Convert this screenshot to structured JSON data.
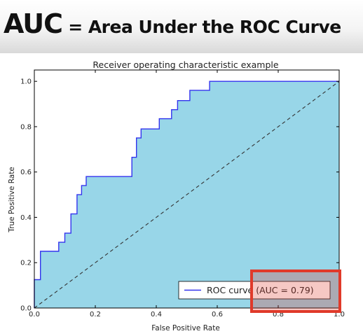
{
  "slide": {
    "title_main": "AUC",
    "title_rest": " = Area Under the ROC Curve"
  },
  "chart_data": {
    "type": "line",
    "title": "Receiver operating characteristic example",
    "xlabel": "False Positive Rate",
    "ylabel": "True Positive Rate",
    "xlim": [
      0.0,
      1.0
    ],
    "ylim": [
      0.0,
      1.05
    ],
    "x_ticks": [
      "0.0",
      "0.2",
      "0.4",
      "0.6",
      "0.8",
      "1.0"
    ],
    "y_ticks": [
      "0.0",
      "0.2",
      "0.4",
      "0.6",
      "0.8",
      "1.0"
    ],
    "grid": false,
    "legend": "lower-right",
    "area_fill_color": "#98d6e8",
    "curve_color": "#3333ee",
    "diagonal_color": "#333333",
    "highlight_box_color": "#e03a2a",
    "series": [
      {
        "name": "ROC curve (AUC = 0.79)",
        "points": [
          [
            0.0,
            0.0
          ],
          [
            0.0,
            0.125
          ],
          [
            0.02,
            0.125
          ],
          [
            0.02,
            0.25
          ],
          [
            0.08,
            0.25
          ],
          [
            0.08,
            0.29
          ],
          [
            0.1,
            0.29
          ],
          [
            0.1,
            0.33
          ],
          [
            0.12,
            0.33
          ],
          [
            0.12,
            0.415
          ],
          [
            0.14,
            0.415
          ],
          [
            0.14,
            0.5
          ],
          [
            0.155,
            0.5
          ],
          [
            0.155,
            0.54
          ],
          [
            0.17,
            0.54
          ],
          [
            0.17,
            0.58
          ],
          [
            0.32,
            0.58
          ],
          [
            0.32,
            0.665
          ],
          [
            0.335,
            0.665
          ],
          [
            0.335,
            0.75
          ],
          [
            0.35,
            0.75
          ],
          [
            0.35,
            0.79
          ],
          [
            0.41,
            0.79
          ],
          [
            0.41,
            0.835
          ],
          [
            0.45,
            0.835
          ],
          [
            0.45,
            0.875
          ],
          [
            0.47,
            0.875
          ],
          [
            0.47,
            0.915
          ],
          [
            0.51,
            0.915
          ],
          [
            0.51,
            0.96
          ],
          [
            0.575,
            0.96
          ],
          [
            0.575,
            1.0
          ],
          [
            1.0,
            1.0
          ]
        ]
      }
    ],
    "reference_line": [
      [
        0.0,
        0.0
      ],
      [
        1.0,
        1.0
      ]
    ]
  }
}
